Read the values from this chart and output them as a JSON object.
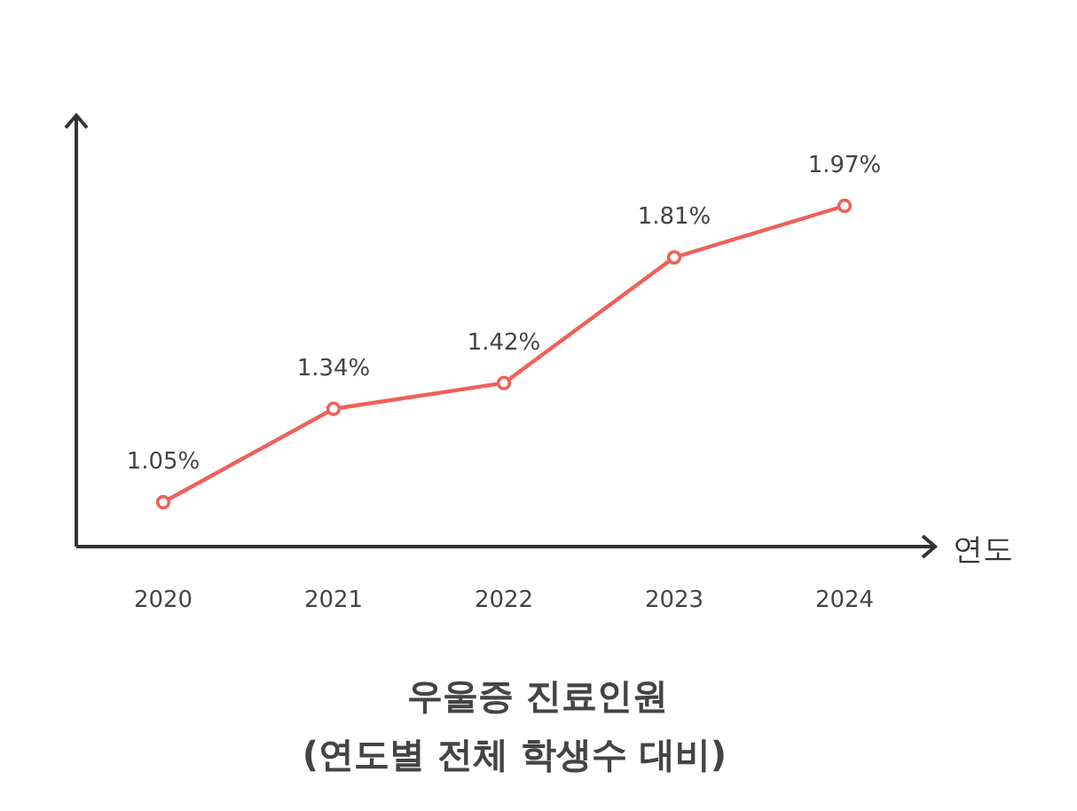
{
  "chart_data": {
    "type": "line",
    "title": "우울증 진료인원",
    "subtitle": "(연도별 전체 학생수 대비)",
    "xlabel": "연도",
    "categories": [
      "2020",
      "2021",
      "2022",
      "2023",
      "2024"
    ],
    "values": [
      1.05,
      1.34,
      1.42,
      1.81,
      1.97
    ],
    "value_labels": [
      "1.05%",
      "1.34%",
      "1.42%",
      "1.81%",
      "1.97%"
    ],
    "color": "#f0605a",
    "marker": "circle",
    "relative": false
  }
}
